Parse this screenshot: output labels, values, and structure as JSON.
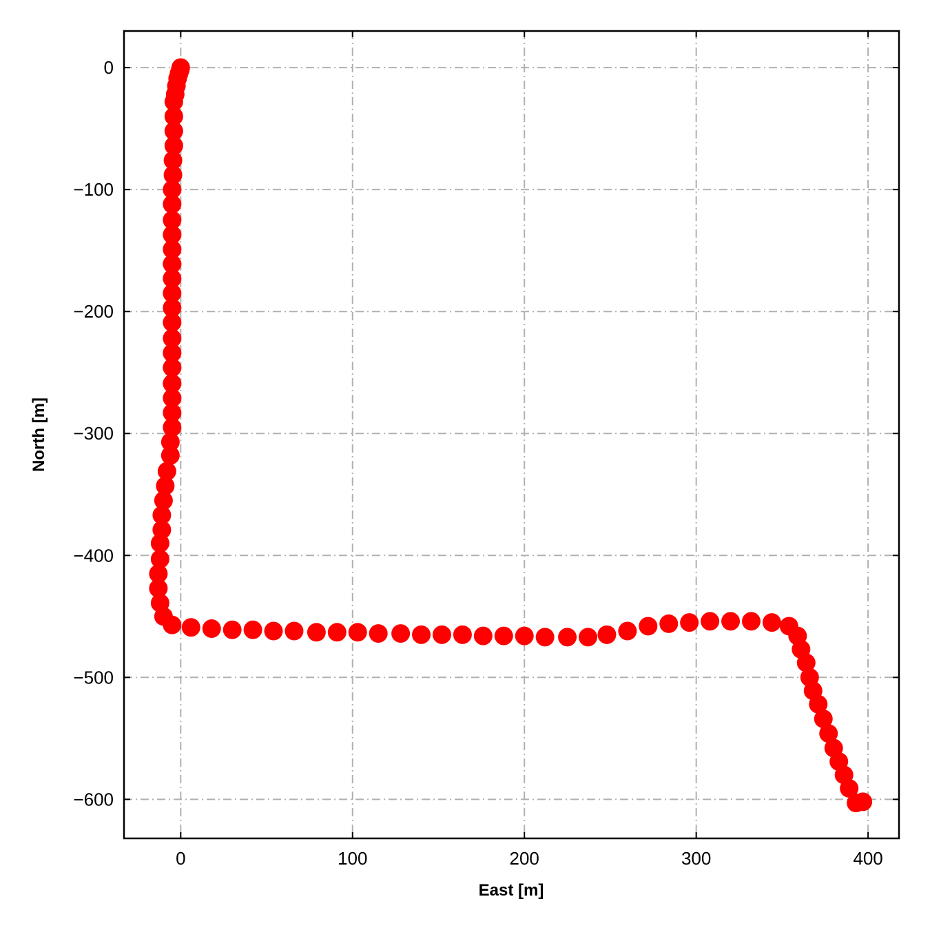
{
  "chart_data": {
    "type": "scatter",
    "xlabel": "East [m]",
    "ylabel": "North [m]",
    "xlim": [
      -33,
      418
    ],
    "ylim": [
      -632,
      30
    ],
    "xticks": [
      0,
      100,
      200,
      300,
      400
    ],
    "yticks": [
      0,
      -100,
      -200,
      -300,
      -400,
      -500,
      -600
    ],
    "xtick_labels": [
      "0",
      "100",
      "200",
      "300",
      "400"
    ],
    "ytick_labels": [
      "0",
      "−100",
      "−200",
      "−300",
      "−400",
      "−500",
      "−600"
    ],
    "grid": true,
    "marker_color": "#ff0000",
    "series": [
      {
        "x": [
          0,
          -0.3,
          -1,
          -1.8,
          -2.5,
          -3.2,
          -4,
          -4,
          -4,
          -4,
          -4.5,
          -4.5,
          -5,
          -5,
          -5,
          -5,
          -5,
          -5,
          -5,
          -5,
          -5,
          -5,
          -5,
          -5,
          -5,
          -5,
          -5,
          -5,
          -5,
          -6,
          -6,
          -8,
          -9,
          -10,
          -11,
          -11,
          -12,
          -12,
          -13,
          -13,
          -12,
          -10,
          -5,
          6,
          18,
          30,
          42,
          54,
          66,
          79,
          91,
          103,
          115,
          128,
          140,
          152,
          164,
          176,
          188,
          200,
          212,
          225,
          237,
          248,
          260,
          272,
          284,
          296,
          308,
          320,
          332,
          344,
          354,
          359,
          361,
          364,
          366,
          368,
          371,
          374,
          377,
          380,
          383,
          386,
          389,
          393,
          397
        ],
        "y": [
          0,
          -2,
          -5,
          -9,
          -15,
          -22,
          -28,
          -40,
          -52,
          -64,
          -76,
          -88,
          -100,
          -112,
          -125,
          -137,
          -149,
          -161,
          -173,
          -185,
          -197,
          -209,
          -222,
          -234,
          -246,
          -259,
          -271,
          -283,
          -295,
          -307,
          -318,
          -331,
          -343,
          -355,
          -367,
          -379,
          -390,
          -403,
          -415,
          -427,
          -439,
          -450,
          -457,
          -459,
          -460,
          -461,
          -461,
          -462,
          -462,
          -463,
          -463,
          -463,
          -464,
          -464,
          -465,
          -465,
          -465,
          -466,
          -466,
          -466,
          -467,
          -467,
          -467,
          -465,
          -462,
          -458,
          -456,
          -455,
          -454,
          -454,
          -454,
          -455,
          -458,
          -466,
          -477,
          -488,
          -500,
          -511,
          -522,
          -534,
          -546,
          -558,
          -569,
          -580,
          -591,
          -603,
          -602
        ]
      }
    ]
  }
}
